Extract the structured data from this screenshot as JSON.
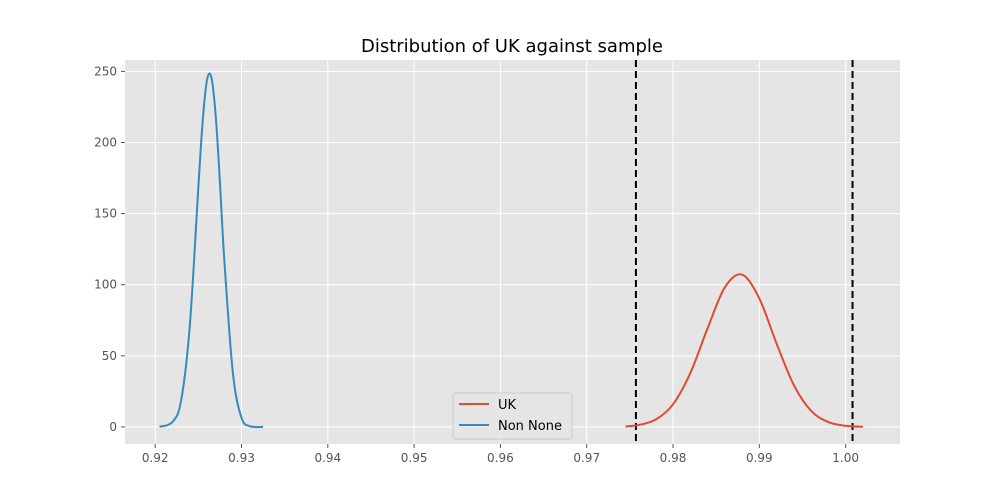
{
  "chart_data": {
    "type": "line",
    "title": "Distribution of UK against sample",
    "xlabel": "",
    "ylabel": "",
    "xlim": [
      0.9165,
      1.0063
    ],
    "ylim": [
      -12,
      258
    ],
    "xticks": [
      0.92,
      0.93,
      0.94,
      0.95,
      0.96,
      0.97,
      0.98,
      0.99,
      1.0
    ],
    "xtick_labels": [
      "0.92",
      "0.93",
      "0.94",
      "0.95",
      "0.96",
      "0.97",
      "0.98",
      "0.99",
      "1.00"
    ],
    "yticks": [
      0,
      50,
      100,
      150,
      200,
      250
    ],
    "ytick_labels": [
      "0",
      "50",
      "100",
      "150",
      "200",
      "250"
    ],
    "grid": true,
    "legend_position": "lower-center",
    "series": [
      {
        "name": "UK",
        "color": "#e24a33",
        "x": [
          0.9745,
          0.976,
          0.978,
          0.98,
          0.982,
          0.984,
          0.986,
          0.988,
          0.99,
          0.992,
          0.994,
          0.996,
          0.998,
          1.0,
          1.002
        ],
        "y": [
          0.4,
          1.3,
          5.2,
          15.9,
          37.8,
          69.3,
          98.1,
          107.1,
          90.3,
          58.6,
          29.4,
          11.3,
          3.4,
          0.8,
          0.1
        ]
      },
      {
        "name": "Non None",
        "color": "#348abd",
        "x": [
          0.9205,
          0.922,
          0.923,
          0.924,
          0.925,
          0.9255,
          0.926,
          0.9265,
          0.927,
          0.9275,
          0.928,
          0.929,
          0.93,
          0.931,
          0.9325
        ],
        "y": [
          0.1,
          3.5,
          18.5,
          70.5,
          168.6,
          215.0,
          243.9,
          246.0,
          219.5,
          172.0,
          118.0,
          38.0,
          6.5,
          0.5,
          0.0
        ]
      }
    ],
    "reference_lines": [
      {
        "x": 0.9757,
        "color": "#000000",
        "style": "dashed"
      },
      {
        "x": 1.0008,
        "color": "#000000",
        "style": "dashed"
      }
    ]
  }
}
